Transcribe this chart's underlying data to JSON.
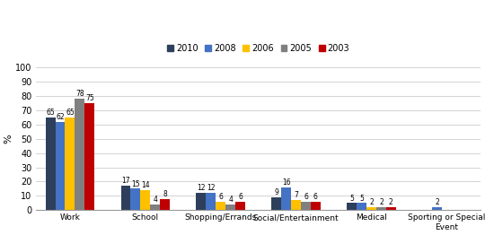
{
  "categories": [
    "Work",
    "School",
    "Shopping/Errands",
    "Social/Entertainment",
    "Medical",
    "Sporting or Special\nEvent"
  ],
  "years": [
    "2010",
    "2008",
    "2006",
    "2005",
    "2003"
  ],
  "colors": [
    "#2E3F5C",
    "#4472C4",
    "#FFC000",
    "#808080",
    "#C00000"
  ],
  "values": {
    "Work": [
      65,
      62,
      65,
      78,
      75
    ],
    "School": [
      17,
      15,
      14,
      4,
      8
    ],
    "Shopping/Errands": [
      12,
      12,
      6,
      4,
      6
    ],
    "Social/Entertainment": [
      9,
      16,
      7,
      6,
      6
    ],
    "Medical": [
      5,
      5,
      2,
      2,
      2
    ],
    "Sporting or Special\nEvent": [
      0,
      2,
      0,
      0,
      0
    ]
  },
  "bar_labels": {
    "Work": [
      "65",
      "62",
      "65",
      "78",
      "75"
    ],
    "School": [
      "17",
      "15",
      "14",
      "4",
      "8"
    ],
    "Shopping/Errands": [
      "12",
      "12",
      "6",
      "4",
      "6"
    ],
    "Social/Entertainment": [
      "9",
      "16",
      "7",
      "6",
      "6"
    ],
    "Medical": [
      "5",
      "5",
      "2",
      "2",
      "2"
    ],
    "Sporting or Special\nEvent": [
      "",
      "2",
      "",
      "",
      ""
    ]
  },
  "ylim": [
    0,
    100
  ],
  "yticks": [
    0,
    10,
    20,
    30,
    40,
    50,
    60,
    70,
    80,
    90,
    100
  ],
  "ylabel": "%",
  "background_color": "#FFFFFF",
  "grid_color": "#CCCCCC",
  "bar_width": 0.13,
  "figsize": [
    5.5,
    2.62
  ],
  "dpi": 100
}
